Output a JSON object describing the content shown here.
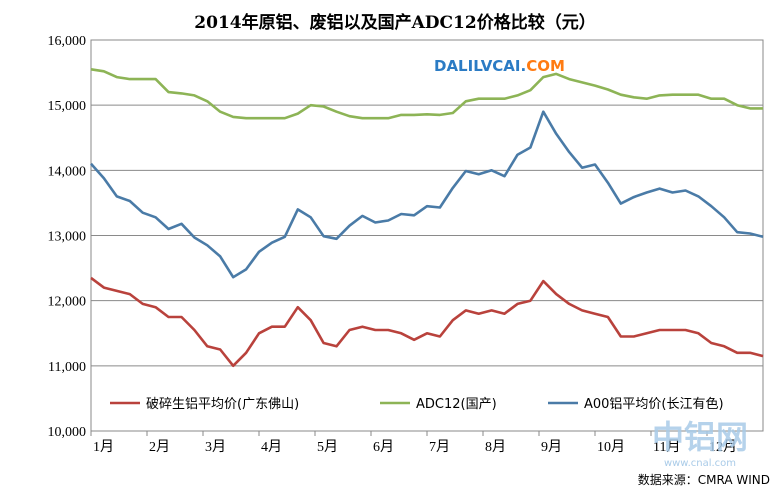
{
  "chart_data": {
    "type": "line",
    "title": "2014年原铝、废铝以及国产ADC12价格比较（元）",
    "x_tick_labels": [
      "1月",
      "2月",
      "3月",
      "4月",
      "5月",
      "6月",
      "7月",
      "8月",
      "9月",
      "10月",
      "11月",
      "12月"
    ],
    "y_tick_labels": [
      "10,000",
      "11,000",
      "12,000",
      "13,000",
      "14,000",
      "15,000",
      "16,000"
    ],
    "ylim": [
      10000,
      16000
    ],
    "grid": true,
    "legend_position": "bottom",
    "series": [
      {
        "name": "破碎生铝平均价(广东佛山)",
        "color": "#b9423c",
        "values": [
          12350,
          12200,
          12150,
          12100,
          11950,
          11900,
          11750,
          11750,
          11550,
          11300,
          11250,
          11000,
          11200,
          11500,
          11600,
          11600,
          11900,
          11700,
          11350,
          11300,
          11550,
          11600,
          11550,
          11550,
          11500,
          11400,
          11500,
          11450,
          11700,
          11850,
          11800,
          11850,
          11800,
          11950,
          12000,
          12300,
          12100,
          11950,
          11850,
          11800,
          11750,
          11450,
          11450,
          11500,
          11550,
          11550,
          11550,
          11500,
          11350,
          11300,
          11200,
          11200,
          11150
        ]
      },
      {
        "name": "ADC12(国产)",
        "color": "#8db456",
        "values": [
          15550,
          15520,
          15430,
          15400,
          15400,
          15400,
          15200,
          15180,
          15150,
          15060,
          14900,
          14820,
          14800,
          14800,
          14800,
          14800,
          14870,
          15000,
          14980,
          14900,
          14830,
          14800,
          14800,
          14800,
          14850,
          14850,
          14860,
          14850,
          14880,
          15060,
          15100,
          15100,
          15100,
          15150,
          15230,
          15430,
          15480,
          15400,
          15350,
          15300,
          15240,
          15160,
          15120,
          15100,
          15150,
          15160,
          15160,
          15160,
          15100,
          15100,
          15000,
          14950,
          14950
        ]
      },
      {
        "name": "A00铝平均价(长江有色)",
        "color": "#4a7ba7",
        "values": [
          14100,
          13880,
          13600,
          13530,
          13350,
          13280,
          13100,
          13180,
          12970,
          12850,
          12680,
          12360,
          12480,
          12750,
          12890,
          12980,
          13400,
          13280,
          12990,
          12950,
          13150,
          13300,
          13200,
          13230,
          13330,
          13310,
          13450,
          13430,
          13730,
          13990,
          13940,
          14000,
          13910,
          14240,
          14350,
          14900,
          14560,
          14280,
          14040,
          14090,
          13810,
          13490,
          13590,
          13660,
          13720,
          13660,
          13690,
          13600,
          13450,
          13280,
          13050,
          13030,
          12980
        ]
      }
    ]
  },
  "watermark": {
    "site_part1": "DALILVCAI.",
    "site_part2": "COM",
    "logo_text": "中铝网",
    "logo_url": "www.cnal.com"
  },
  "source_label": "数据来源：CMRA   WIND"
}
